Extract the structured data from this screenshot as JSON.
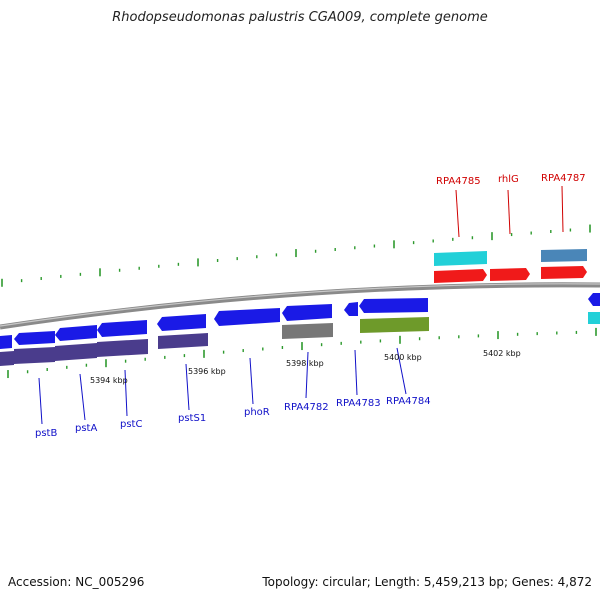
{
  "title": "Rhodopseudomonas palustris CGA009, complete genome",
  "footer": {
    "accession": "Accession: NC_005296",
    "summary": "Topology: circular; Length: 5,459,213 bp; Genes: 4,872"
  },
  "colors": {
    "backbone": "#8a8a8a",
    "tick": "#2e9a2e",
    "label_forward": "#d00000",
    "label_reverse": "#1010c8",
    "gene_blue": "#1a1ae6",
    "gene_red": "#f01a1a",
    "gene_cyan": "#22d0d8",
    "gene_steel": "#4a86b8",
    "gene_purple": "#4a3c8c",
    "gene_gray": "#777777",
    "gene_olive": "#6e9a2a"
  },
  "scale_labels": [
    "5394 kbp",
    "5396 kbp",
    "5398 kbp",
    "5400 kbp",
    "5402 kbp"
  ],
  "gene_labels": {
    "forward": [
      "RPA4785",
      "rhlG",
      "RPA4787"
    ],
    "reverse": [
      "pstB",
      "pstA",
      "pstC",
      "pstS1",
      "phoR",
      "RPA4782",
      "RPA4783",
      "RPA4784"
    ]
  }
}
